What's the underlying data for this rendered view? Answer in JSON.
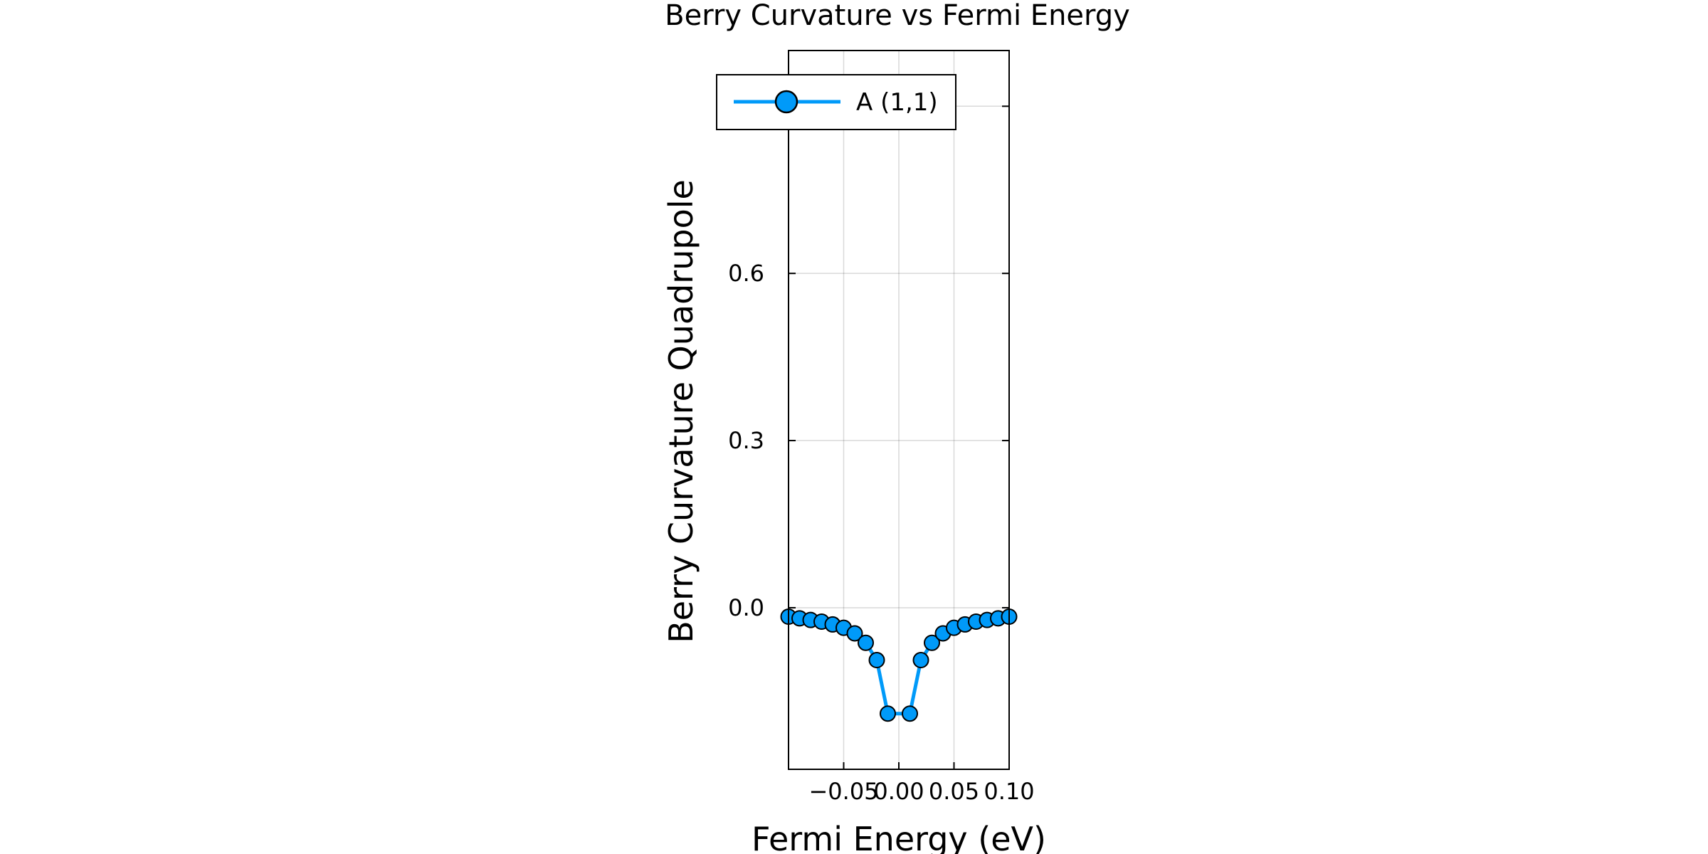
{
  "chart_data": {
    "type": "line",
    "title": "Berry Curvature vs Fermi Energy",
    "xlabel": "Fermi Energy (eV)",
    "ylabel": "Berry Curvature Quadrupole",
    "xlim": [
      -0.1,
      0.1
    ],
    "ylim": [
      -0.29,
      1.0
    ],
    "xticks": [
      -0.05,
      0.0,
      0.05,
      0.1
    ],
    "xtick_labels": [
      "−0.05",
      "0.00",
      "0.05",
      "0.10"
    ],
    "yticks": [
      0.0,
      0.3,
      0.6,
      0.9
    ],
    "ytick_labels": [
      "0.0",
      "0.3",
      "0.6",
      ""
    ],
    "grid": true,
    "legend": "top-left",
    "series": [
      {
        "name": "A (1,1)",
        "color": "#009af9",
        "marker": "circle",
        "x": [
          -0.1,
          -0.09,
          -0.08,
          -0.07,
          -0.06,
          -0.05,
          -0.04,
          -0.03,
          -0.02,
          -0.01,
          0.01,
          0.02,
          0.03,
          0.04,
          0.05,
          0.06,
          0.07,
          0.08,
          0.09,
          0.1
        ],
        "y": [
          -0.016,
          -0.019,
          -0.022,
          -0.025,
          -0.03,
          -0.036,
          -0.046,
          -0.063,
          -0.094,
          -0.19,
          -0.19,
          -0.094,
          -0.063,
          -0.046,
          -0.036,
          -0.03,
          -0.025,
          -0.022,
          -0.019,
          -0.016
        ]
      }
    ]
  }
}
